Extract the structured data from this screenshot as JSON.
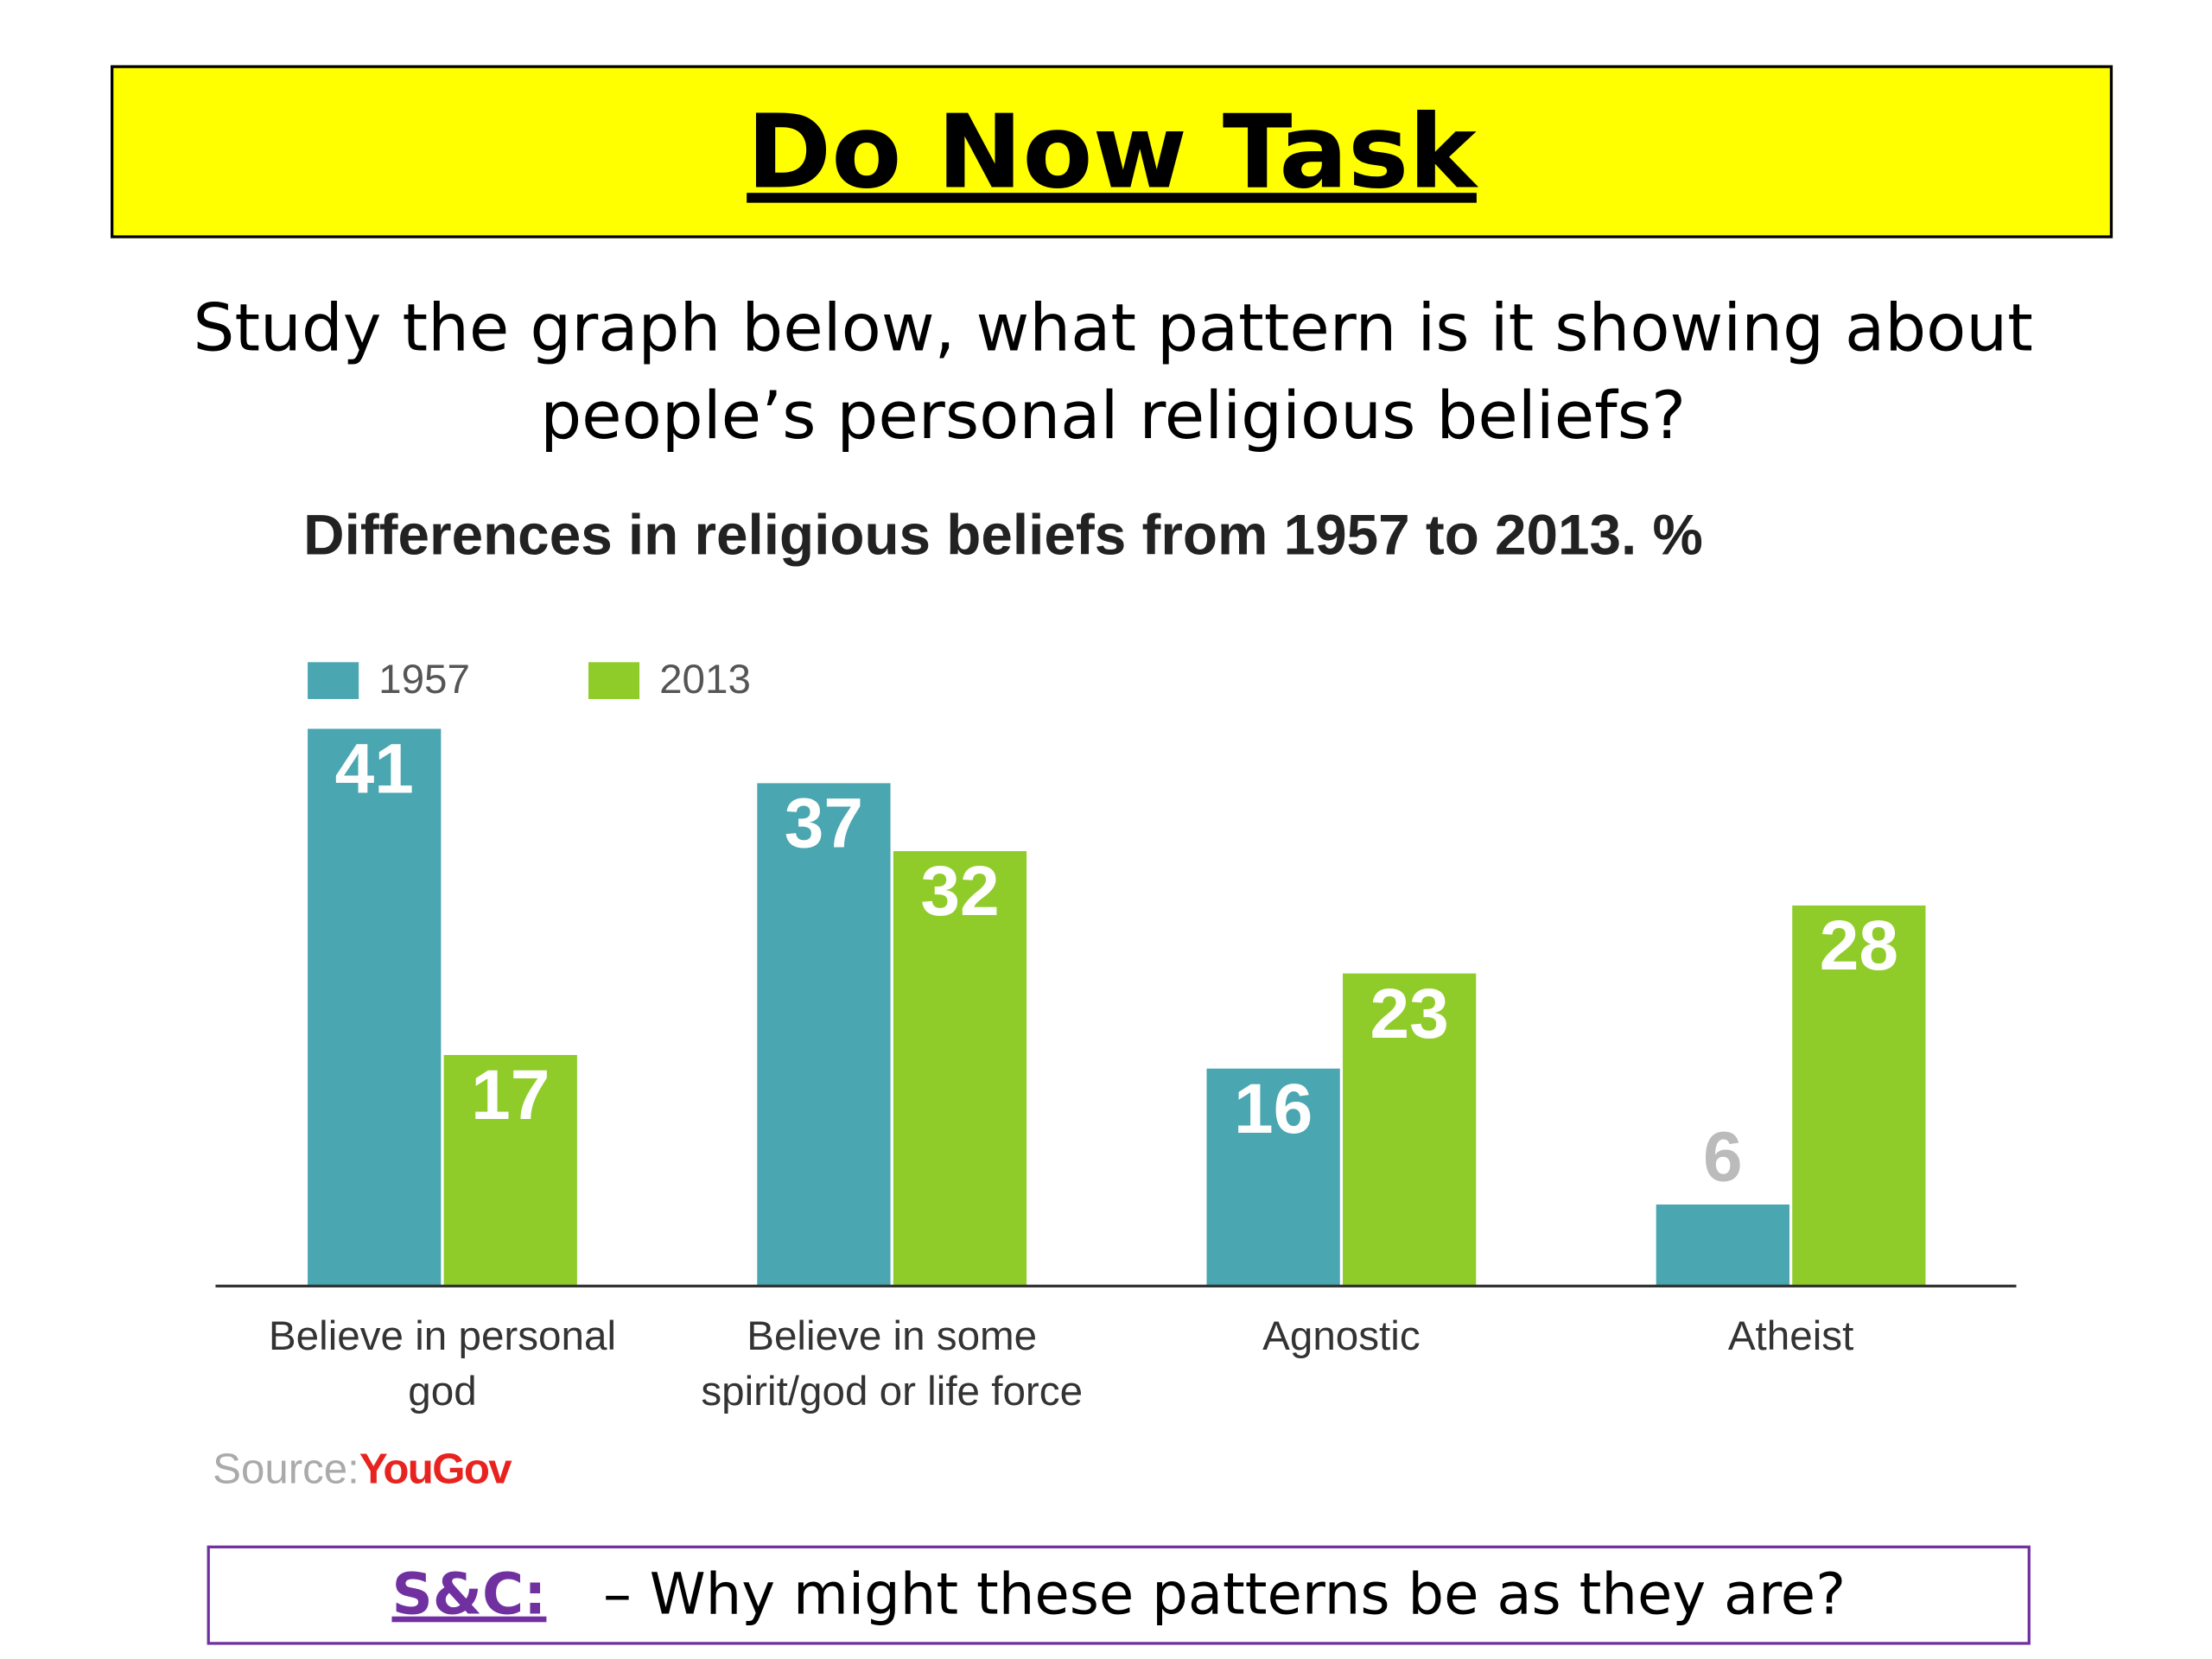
{
  "header": {
    "title": "Do Now Task"
  },
  "prompt": "Study the graph below, what pattern is it showing about people’s personal religious beliefs?",
  "chart_data": {
    "type": "bar",
    "title": "Differences in religious beliefs from 1957 to 2013. %",
    "categories": [
      "Believe in personal god",
      "Believe in some spirit/god or life force",
      "Agnostic",
      "Atheist"
    ],
    "series": [
      {
        "name": "1957",
        "color": "#4aa6b0",
        "values": [
          41,
          37,
          16,
          6
        ]
      },
      {
        "name": "2013",
        "color": "#8fcc2a",
        "values": [
          17,
          32,
          23,
          28
        ]
      }
    ],
    "source": "Source:",
    "source_logo": "YouGov"
  },
  "footer": {
    "label": "S&C:",
    "text": "– Why might these patterns be as they are?"
  }
}
